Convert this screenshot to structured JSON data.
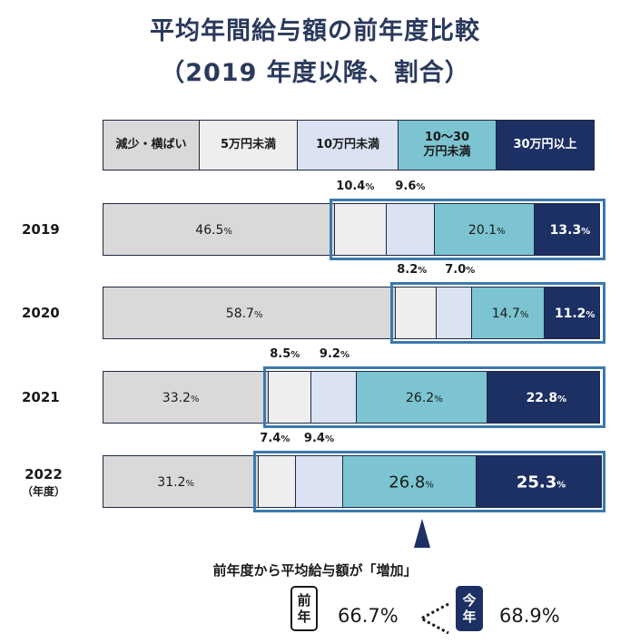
{
  "title": {
    "line1": "平均年間給与額の前年度比較",
    "line2": "（2019 年度以降、割合）"
  },
  "legend": [
    {
      "label": "減少・横ばい",
      "bg": "#d9d9d9",
      "fg": "#1a1a1a"
    },
    {
      "label": "5万円未満",
      "bg": "#eeeeee",
      "fg": "#1a1a1a"
    },
    {
      "label": "10万円未満",
      "bg": "#dbe3f3",
      "fg": "#1a1a1a"
    },
    {
      "label": "10〜30\n万円未満",
      "bg": "#7cc4d1",
      "fg": "#1a1a1a"
    },
    {
      "label": "30万円以上",
      "bg": "#1c3064",
      "fg": "#ffffff"
    }
  ],
  "chart_data": {
    "type": "bar",
    "orientation": "horizontal",
    "stacked": true,
    "categories": [
      "2019",
      "2020",
      "2021",
      "2022"
    ],
    "category_suffix": "（年度）",
    "series": [
      {
        "name": "減少・横ばい",
        "values": [
          46.5,
          58.7,
          33.2,
          31.2
        ]
      },
      {
        "name": "5万円未満",
        "values": [
          10.4,
          8.2,
          8.5,
          7.4
        ]
      },
      {
        "name": "10万円未満",
        "values": [
          9.6,
          7.0,
          9.2,
          9.4
        ]
      },
      {
        "name": "10〜30万円未満",
        "values": [
          20.1,
          14.7,
          26.2,
          26.8
        ]
      },
      {
        "name": "30万円以上",
        "values": [
          13.3,
          11.2,
          22.8,
          25.3
        ]
      }
    ],
    "unit": "%",
    "highlight_year": "2022"
  },
  "note": "前年度から平均給与額が「増加」",
  "comparison": {
    "prev_label": [
      "前",
      "年"
    ],
    "prev_value": "66.7%",
    "curr_label": [
      "今",
      "年"
    ],
    "curr_value": "68.9%"
  },
  "colors": {
    "frame": "#3b79ad",
    "navy": "#1c3064",
    "title": "#2a3a5c"
  }
}
